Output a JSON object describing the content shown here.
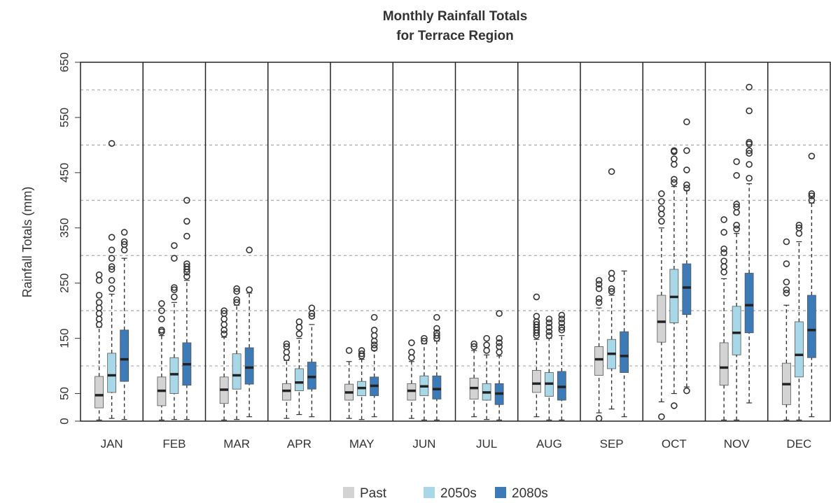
{
  "chart_data": {
    "type": "boxplot",
    "title": [
      "Monthly Rainfall Totals",
      "for Terrace Region"
    ],
    "y_label": "Rainfall Totals (mm)",
    "categories": [
      "JAN",
      "FEB",
      "MAR",
      "APR",
      "MAY",
      "JUN",
      "JUL",
      "AUG",
      "SEP",
      "OCT",
      "NOV",
      "DEC"
    ],
    "ylim": [
      0,
      650
    ],
    "yticks": [
      0,
      50,
      150,
      250,
      350,
      450,
      550,
      650
    ],
    "grid_lines": [
      100,
      200,
      300,
      400,
      500,
      600
    ],
    "grid": true,
    "legend": "bottom",
    "series": [
      {
        "name": "Past",
        "color": "#d3d3d3",
        "boxes": [
          [
            2,
            24,
            47,
            81,
            170
          ],
          [
            2,
            28,
            55,
            80,
            155
          ],
          [
            2,
            32,
            57,
            80,
            152
          ],
          [
            5,
            38,
            55,
            68,
            110
          ],
          [
            5,
            38,
            52,
            67,
            108
          ],
          [
            5,
            38,
            55,
            68,
            108
          ],
          [
            8,
            40,
            60,
            78,
            128
          ],
          [
            8,
            52,
            68,
            92,
            148
          ],
          [
            15,
            83,
            112,
            135,
            205
          ],
          [
            35,
            143,
            180,
            228,
            350
          ],
          [
            2,
            65,
            97,
            142,
            258
          ],
          [
            2,
            30,
            67,
            105,
            210
          ]
        ],
        "outliers": [
          [
            175,
            185,
            195,
            205,
            215,
            228,
            255,
            265
          ],
          [
            162,
            165,
            185,
            200,
            213
          ],
          [
            158,
            165,
            175,
            185,
            195,
            200
          ],
          [
            115,
            125,
            135,
            140
          ],
          [
            128
          ],
          [
            115,
            125,
            142
          ],
          [
            135,
            140
          ],
          [
            155,
            160,
            165,
            170,
            175,
            180,
            190,
            225
          ],
          [
            5,
            215,
            222,
            240,
            248,
            255
          ],
          [
            8,
            362,
            375,
            385,
            398,
            412
          ],
          [
            270,
            280,
            290,
            305,
            312,
            342,
            365
          ],
          [
            232,
            238,
            252,
            285,
            325
          ]
        ]
      },
      {
        "name": "2050s",
        "color": "#a8d8e8",
        "boxes": [
          [
            5,
            52,
            83,
            123,
            230
          ],
          [
            3,
            50,
            85,
            115,
            215
          ],
          [
            3,
            58,
            83,
            122,
            210
          ],
          [
            12,
            55,
            70,
            95,
            150
          ],
          [
            3,
            46,
            60,
            72,
            112
          ],
          [
            2,
            46,
            63,
            82,
            140
          ],
          [
            3,
            38,
            52,
            68,
            120
          ],
          [
            2,
            45,
            68,
            88,
            150
          ],
          [
            22,
            95,
            122,
            148,
            228
          ],
          [
            50,
            178,
            225,
            275,
            425
          ],
          [
            2,
            120,
            160,
            208,
            340
          ],
          [
            2,
            80,
            120,
            180,
            325
          ]
        ],
        "outliers": [
          [
            240,
            255,
            275,
            280,
            295,
            310,
            333,
            503
          ],
          [
            225,
            238,
            242,
            295,
            318
          ],
          [
            215,
            220,
            235,
            240
          ],
          [
            158,
            170,
            180
          ],
          [
            118,
            122,
            128
          ],
          [
            145,
            150
          ],
          [
            128,
            138,
            150
          ],
          [
            155,
            162,
            170,
            178,
            185
          ],
          [
            235,
            240,
            258,
            268,
            452
          ],
          [
            28,
            432,
            438,
            465,
            475,
            488,
            490
          ],
          [
            348,
            355,
            378,
            388,
            393,
            445,
            470
          ],
          [
            340,
            350,
            355
          ]
        ]
      },
      {
        "name": "2080s",
        "color": "#3d7ab8",
        "boxes": [
          [
            3,
            72,
            112,
            165,
            295
          ],
          [
            3,
            65,
            103,
            142,
            255
          ],
          [
            8,
            67,
            97,
            133,
            232
          ],
          [
            8,
            58,
            80,
            107,
            175
          ],
          [
            8,
            46,
            64,
            80,
            128
          ],
          [
            2,
            40,
            58,
            82,
            145
          ],
          [
            2,
            30,
            50,
            68,
            118
          ],
          [
            2,
            38,
            62,
            90,
            155
          ],
          [
            8,
            88,
            118,
            162,
            272
          ],
          [
            62,
            193,
            242,
            285,
            418
          ],
          [
            33,
            160,
            210,
            268,
            430
          ],
          [
            8,
            115,
            165,
            228,
            395
          ]
        ],
        "outliers": [
          [
            310,
            320,
            325,
            342
          ],
          [
            262,
            270,
            275,
            280,
            285,
            335,
            362,
            400
          ],
          [
            238,
            310
          ],
          [
            190,
            195,
            205
          ],
          [
            132,
            138,
            145,
            155,
            165,
            188
          ],
          [
            150,
            155,
            160,
            168,
            188
          ],
          [
            125,
            135,
            142,
            150,
            195
          ],
          [
            165,
            170,
            178,
            185,
            192
          ],
          [],
          [
            55,
            422,
            428,
            455,
            490,
            542
          ],
          [
            440,
            465,
            485,
            490,
            502,
            505,
            562,
            605
          ],
          [
            400,
            408,
            412,
            480
          ]
        ]
      }
    ]
  }
}
